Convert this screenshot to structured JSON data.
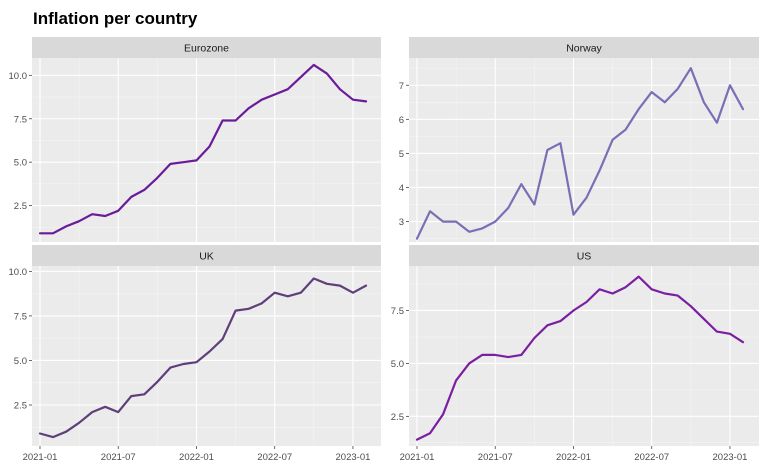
{
  "chart_data": {
    "type": "line",
    "title": "Inflation per country",
    "xlabel": "",
    "ylabel": "",
    "grid": true,
    "x_tick_labels": [
      "2021-01",
      "2021-07",
      "2022-01",
      "2022-07",
      "2023-01"
    ],
    "x": [
      "2021-01",
      "2021-02",
      "2021-03",
      "2021-04",
      "2021-05",
      "2021-06",
      "2021-07",
      "2021-08",
      "2021-09",
      "2021-10",
      "2021-11",
      "2021-12",
      "2022-01",
      "2022-02",
      "2022-03",
      "2022-04",
      "2022-05",
      "2022-06",
      "2022-07",
      "2022-08",
      "2022-09",
      "2022-10",
      "2022-11",
      "2022-12",
      "2023-01",
      "2023-02"
    ],
    "panels": [
      {
        "name": "Eurozone",
        "color": "#6a1b9a",
        "yticks": [
          2.5,
          5.0,
          7.5,
          10.0
        ],
        "ytick_labels": [
          "2.5",
          "5.0",
          "7.5",
          "10.0"
        ],
        "ylim": [
          0.4,
          11.0
        ],
        "values": [
          0.9,
          0.9,
          1.3,
          1.6,
          2.0,
          1.9,
          2.2,
          3.0,
          3.4,
          4.1,
          4.9,
          5.0,
          5.1,
          5.9,
          7.4,
          7.4,
          8.1,
          8.6,
          8.9,
          9.2,
          9.9,
          10.6,
          10.1,
          9.2,
          8.6,
          8.5
        ]
      },
      {
        "name": "Norway",
        "color": "#7a6fb6",
        "yticks": [
          3,
          4,
          5,
          6,
          7
        ],
        "ytick_labels": [
          "3",
          "4",
          "5",
          "6",
          "7"
        ],
        "ylim": [
          2.4,
          7.8
        ],
        "values": [
          2.5,
          3.3,
          3.0,
          3.0,
          2.7,
          2.8,
          3.0,
          3.4,
          4.1,
          3.5,
          5.1,
          5.3,
          3.2,
          3.7,
          4.5,
          5.4,
          5.7,
          6.3,
          6.8,
          6.5,
          6.9,
          7.5,
          6.5,
          5.9,
          7.0,
          6.3
        ]
      },
      {
        "name": "UK",
        "color": "#5e3f7a",
        "yticks": [
          2.5,
          5.0,
          7.5,
          10.0
        ],
        "ytick_labels": [
          "2.5",
          "5.0",
          "7.5",
          "10.0"
        ],
        "ylim": [
          0.2,
          10.3
        ],
        "values": [
          0.9,
          0.7,
          1.0,
          1.5,
          2.1,
          2.4,
          2.1,
          3.0,
          3.1,
          3.8,
          4.6,
          4.8,
          4.9,
          5.5,
          6.2,
          7.8,
          7.9,
          8.2,
          8.8,
          8.6,
          8.8,
          9.6,
          9.3,
          9.2,
          8.8,
          9.2
        ]
      },
      {
        "name": "US",
        "color": "#7b1fa2",
        "yticks": [
          2.5,
          5.0,
          7.5
        ],
        "ytick_labels": [
          "2.5",
          "5.0",
          "7.5"
        ],
        "ylim": [
          1.1,
          9.6
        ],
        "values": [
          1.4,
          1.7,
          2.6,
          4.2,
          5.0,
          5.4,
          5.4,
          5.3,
          5.4,
          6.2,
          6.8,
          7.0,
          7.5,
          7.9,
          8.5,
          8.3,
          8.6,
          9.1,
          8.5,
          8.3,
          8.2,
          7.7,
          7.1,
          6.5,
          6.4,
          6.0
        ]
      }
    ]
  }
}
